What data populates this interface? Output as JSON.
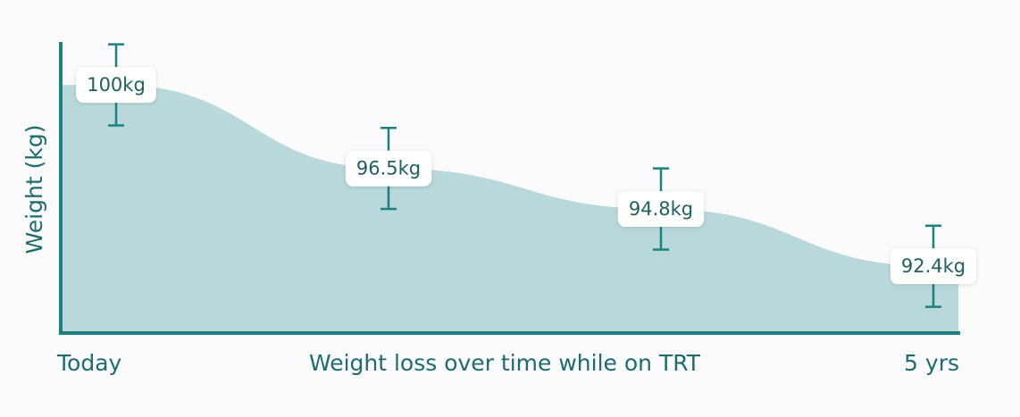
{
  "chart_data": {
    "type": "area",
    "y_label": "Weight (kg)",
    "x_label": "Weight loss over time while on TRT",
    "x_start_label": "Today",
    "x_end_label": "5 yrs",
    "values": [
      100,
      96.5,
      94.8,
      92.4
    ],
    "value_labels": [
      "100kg",
      "96.5kg",
      "94.8kg",
      "92.4kg"
    ],
    "errors": [
      1.7,
      1.7,
      1.7,
      1.7
    ],
    "ylim": [
      89.6,
      101.8
    ],
    "color": "#b9d8d9",
    "line_color": "#1b8181"
  }
}
